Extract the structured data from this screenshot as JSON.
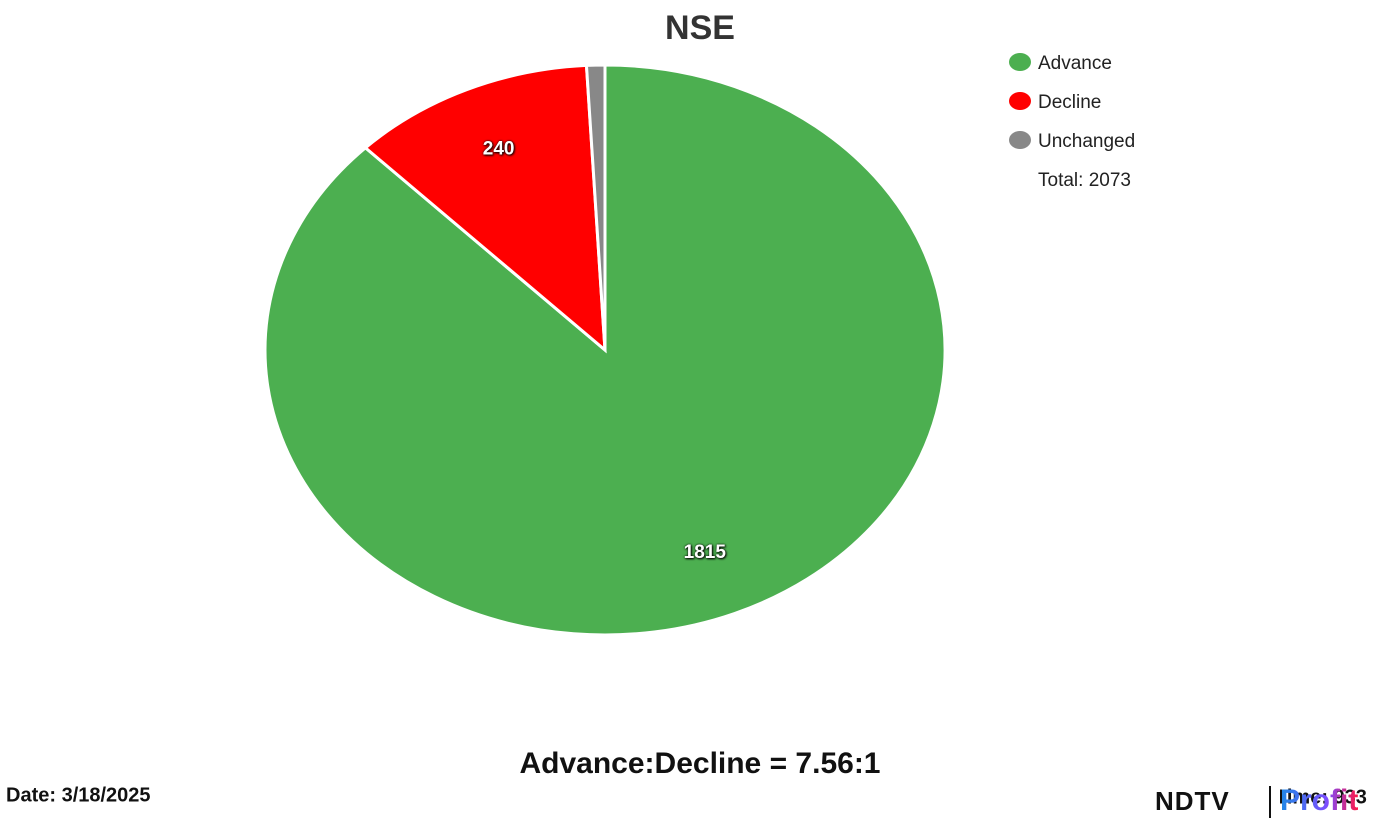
{
  "chart_data": {
    "type": "pie",
    "title": "NSE",
    "categories": [
      "Advance",
      "Decline",
      "Unchanged"
    ],
    "values": [
      1815,
      240,
      18
    ],
    "colors": [
      "#4caf50",
      "#ff0000",
      "#888888"
    ],
    "legend": "top-right",
    "total_label": "Total: 2073"
  },
  "footer": {
    "ratio": "Advance:Decline = 7.56:1",
    "date": "Date: 3/18/2025",
    "time": "Time: 933",
    "logo": {
      "brand": "NDTV",
      "product": "Profit"
    }
  }
}
